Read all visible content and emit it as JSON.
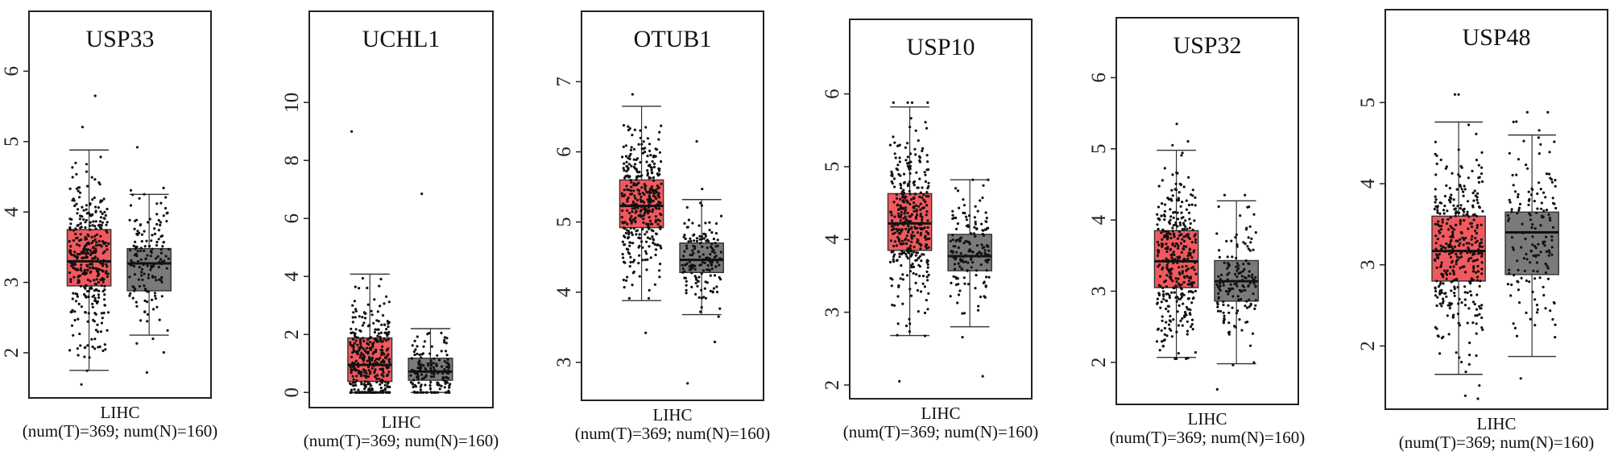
{
  "chart_data": [
    {
      "type": "box",
      "title": "USP33",
      "ylim": [
        1.45,
        6.05
      ],
      "ticks": [
        2,
        3,
        4,
        5,
        6
      ],
      "xlabel": "LIHC",
      "xlabel2": "(num(T)=369; num(N)=160)",
      "series": [
        {
          "name": "T",
          "n": 369,
          "color": "#f2595e",
          "q1": 2.95,
          "median": 3.3,
          "q3": 3.75,
          "whisker_low": 1.75,
          "whisker_high": 4.88,
          "min": 1.55,
          "max": 5.65
        },
        {
          "name": "N",
          "n": 160,
          "color": "#7a7a7a",
          "q1": 2.88,
          "median": 3.27,
          "q3": 3.48,
          "whisker_low": 2.25,
          "whisker_high": 4.25,
          "min": 1.72,
          "max": 4.92
        }
      ]
    },
    {
      "type": "box",
      "title": "UCHL1",
      "ylim": [
        -0.3,
        11.2
      ],
      "ticks": [
        0,
        2,
        4,
        6,
        8,
        10
      ],
      "xlabel": "LIHC",
      "xlabel2": "(num(T)=369; num(N)=160)",
      "series": [
        {
          "name": "T",
          "n": 369,
          "color": "#f2595e",
          "q1": 0.38,
          "median": 0.95,
          "q3": 1.88,
          "whisker_low": 0.0,
          "whisker_high": 4.08,
          "min": 0.0,
          "max": 9.0
        },
        {
          "name": "N",
          "n": 160,
          "color": "#7a7a7a",
          "q1": 0.42,
          "median": 0.72,
          "q3": 1.18,
          "whisker_low": 0.0,
          "whisker_high": 2.2,
          "min": 0.0,
          "max": 6.85
        }
      ]
    },
    {
      "type": "box",
      "title": "OTUB1",
      "ylim": [
        2.55,
        7.2
      ],
      "ticks": [
        3,
        4,
        5,
        6,
        7
      ],
      "xlabel": "LIHC",
      "xlabel2": "(num(T)=369; num(N)=160)",
      "series": [
        {
          "name": "T",
          "n": 369,
          "color": "#f2595e",
          "q1": 4.92,
          "median": 5.23,
          "q3": 5.6,
          "whisker_low": 3.88,
          "whisker_high": 6.65,
          "min": 3.42,
          "max": 6.82
        },
        {
          "name": "N",
          "n": 160,
          "color": "#7a7a7a",
          "q1": 4.28,
          "median": 4.46,
          "q3": 4.7,
          "whisker_low": 3.68,
          "whisker_high": 5.32,
          "min": 2.7,
          "max": 6.15
        }
      ]
    },
    {
      "type": "box",
      "title": "USP10",
      "ylim": [
        1.9,
        6.25
      ],
      "ticks": [
        2,
        3,
        4,
        5,
        6
      ],
      "xlabel": "LIHC",
      "xlabel2": "(num(T)=369; num(N)=160)",
      "series": [
        {
          "name": "T",
          "n": 369,
          "color": "#f2595e",
          "q1": 3.85,
          "median": 4.22,
          "q3": 4.63,
          "whisker_low": 2.68,
          "whisker_high": 5.82,
          "min": 2.05,
          "max": 5.88
        },
        {
          "name": "N",
          "n": 160,
          "color": "#7a7a7a",
          "q1": 3.57,
          "median": 3.77,
          "q3": 4.07,
          "whisker_low": 2.8,
          "whisker_high": 4.82,
          "min": 2.12,
          "max": 4.82
        }
      ]
    },
    {
      "type": "box",
      "title": "USP32",
      "ylim": [
        1.5,
        6.05
      ],
      "ticks": [
        2,
        3,
        4,
        5,
        6
      ],
      "xlabel": "LIHC",
      "xlabel2": "(num(T)=369; num(N)=160)",
      "series": [
        {
          "name": "T",
          "n": 369,
          "color": "#f2595e",
          "q1": 3.05,
          "median": 3.42,
          "q3": 3.85,
          "whisker_low": 2.07,
          "whisker_high": 4.98,
          "min": 2.05,
          "max": 5.35
        },
        {
          "name": "N",
          "n": 160,
          "color": "#7a7a7a",
          "q1": 2.86,
          "median": 3.14,
          "q3": 3.43,
          "whisker_low": 1.98,
          "whisker_high": 4.27,
          "min": 1.62,
          "max": 4.35
        }
      ]
    },
    {
      "type": "box",
      "title": "USP48",
      "ylim": [
        1.3,
        5.45
      ],
      "ticks": [
        2,
        3,
        4,
        5
      ],
      "xlabel": "LIHC",
      "xlabel2": "(num(T)=369; num(N)=160)",
      "series": [
        {
          "name": "T",
          "n": 369,
          "color": "#f2595e",
          "q1": 2.8,
          "median": 3.17,
          "q3": 3.6,
          "whisker_low": 1.65,
          "whisker_high": 4.76,
          "min": 1.35,
          "max": 5.1
        },
        {
          "name": "N",
          "n": 160,
          "color": "#7a7a7a",
          "q1": 2.88,
          "median": 3.4,
          "q3": 3.65,
          "whisker_low": 1.87,
          "whisker_high": 4.6,
          "min": 1.6,
          "max": 4.88
        }
      ]
    }
  ]
}
